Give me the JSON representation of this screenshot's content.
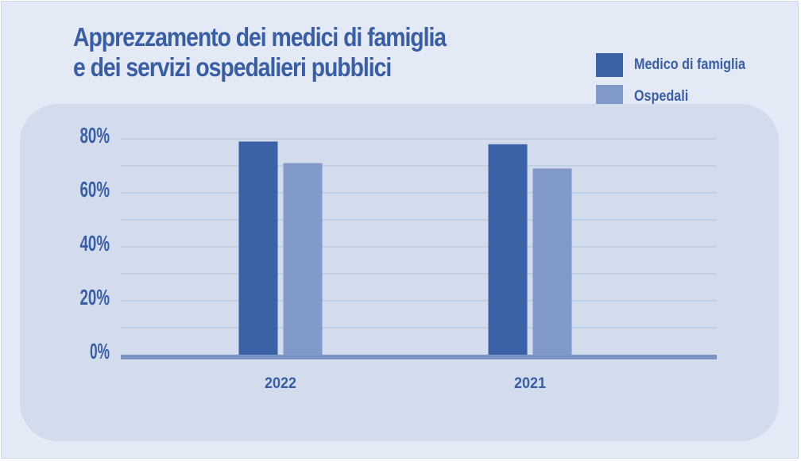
{
  "chart_data": {
    "type": "bar",
    "title": [
      "Apprezzamento dei medici di famiglia",
      "e dei servizi ospedalieri pubblici"
    ],
    "categories": [
      "2022",
      "2021"
    ],
    "series": [
      {
        "name": "Medico di famiglia",
        "color": "#3b61a7",
        "values": [
          79,
          78
        ]
      },
      {
        "name": "Ospedali",
        "color": "#8099c9",
        "values": [
          71,
          69
        ]
      }
    ],
    "y_ticks": [
      "0%",
      "20%",
      "40%",
      "60%",
      "80%"
    ],
    "ylim": [
      0,
      80
    ],
    "grid": true,
    "legend": "top-right"
  }
}
